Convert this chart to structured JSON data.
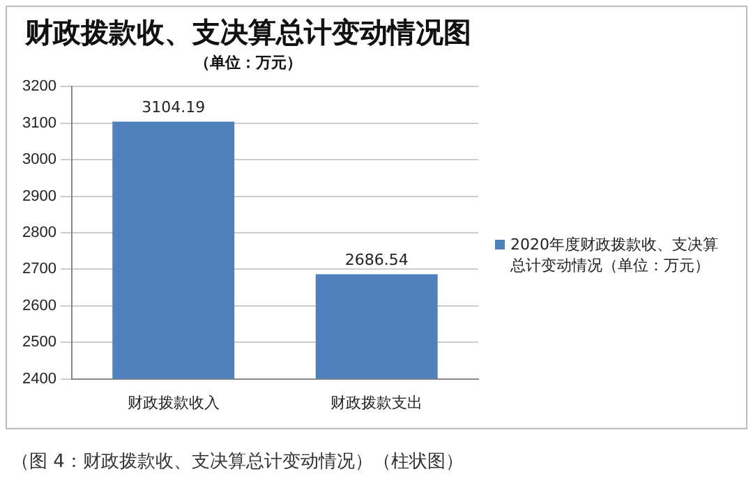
{
  "chart_data": {
    "type": "bar",
    "title": "财政拨款收、支决算总计变动情况图",
    "subtitle": "（单位：万元）",
    "categories": [
      "财政拨款收入",
      "财政拨款支出"
    ],
    "series": [
      {
        "name": "2020年度财政拨款收、支决算总计变动情况（单位：万元）",
        "color": "#4f81bd",
        "values": [
          3104.19,
          2686.54
        ]
      }
    ],
    "ylim": [
      2400,
      3200
    ],
    "yticks": [
      2400,
      2500,
      2600,
      2700,
      2800,
      2900,
      3000,
      3100,
      3200
    ],
    "grid": "y",
    "legend": "right",
    "data_labels": true,
    "annotations": [
      "（图 4：财政拨款收、支决算总计变动情况）（柱状图）"
    ]
  }
}
